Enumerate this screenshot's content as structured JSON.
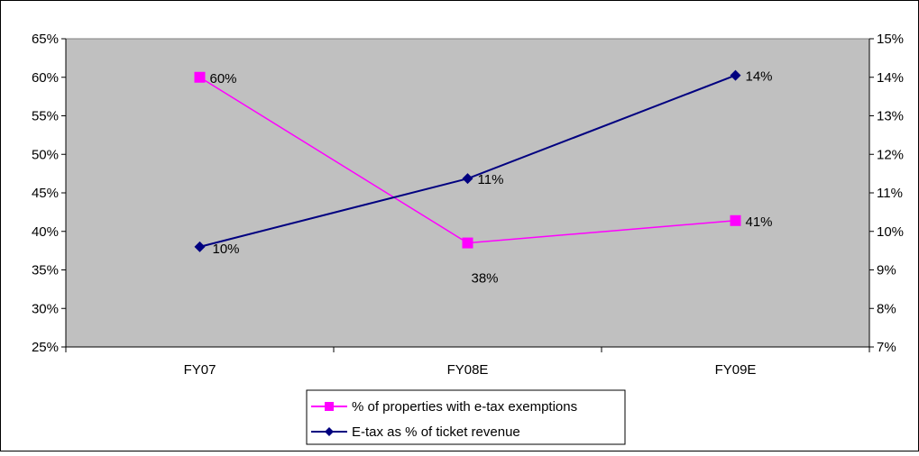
{
  "chart_data": {
    "type": "line",
    "categories": [
      "FY07",
      "FY08E",
      "FY09E"
    ],
    "y_left": {
      "min": 0.25,
      "max": 0.65,
      "step": 0.05,
      "tick_labels": [
        "25%",
        "30%",
        "35%",
        "40%",
        "45%",
        "50%",
        "55%",
        "60%",
        "65%"
      ]
    },
    "y_right": {
      "min": 0.07,
      "max": 0.15,
      "step": 0.01,
      "tick_labels": [
        "7%",
        "8%",
        "9%",
        "10%",
        "11%",
        "12%",
        "13%",
        "14%",
        "15%"
      ]
    },
    "series": [
      {
        "name": "% of properties with e-tax exemptions",
        "axis": "left",
        "values": [
          0.6,
          0.385,
          0.414
        ],
        "data_labels": [
          "60%",
          "38%",
          "41%"
        ],
        "color": "#ff00ff",
        "marker": "square"
      },
      {
        "name": "E-tax as % of ticket revenue",
        "axis": "right",
        "values": [
          0.096,
          0.1137,
          0.1405
        ],
        "data_labels": [
          "10%",
          "11%",
          "14%"
        ],
        "color": "#000080",
        "marker": "diamond"
      }
    ],
    "grid": false,
    "plot_background": "#c0c0c0",
    "legend_position": "bottom-center"
  }
}
